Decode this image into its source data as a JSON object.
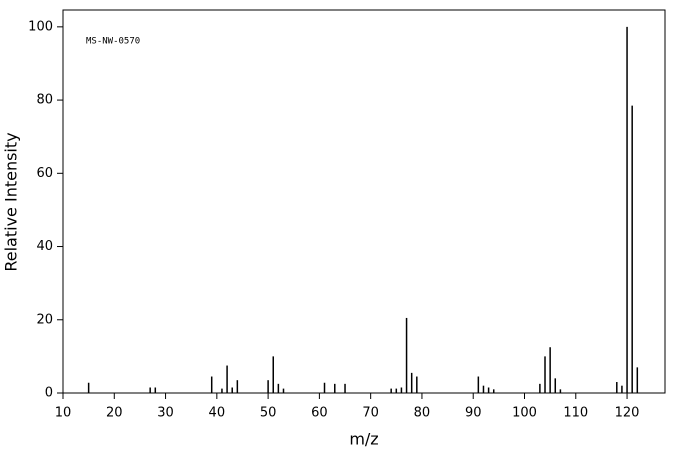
{
  "chart_data": {
    "type": "stem",
    "annotation": "MS-NW-0570",
    "x_label": "m/z",
    "y_label": "Relative Intensity",
    "color": "#000000",
    "x": [
      15,
      27,
      28,
      39,
      41,
      42,
      43,
      44,
      50,
      51,
      52,
      53,
      61,
      63,
      65,
      74,
      75,
      76,
      77,
      78,
      79,
      91,
      92,
      93,
      94,
      103,
      104,
      105,
      106,
      107,
      118,
      119,
      120,
      121,
      122
    ],
    "values": [
      2.8,
      1.5,
      1.5,
      4.5,
      1.2,
      7.5,
      1.5,
      3.5,
      3.5,
      10,
      2.5,
      1.2,
      2.8,
      2.5,
      2.5,
      1.2,
      1.2,
      1.5,
      20.5,
      5.5,
      4.5,
      4.5,
      2,
      1.5,
      1,
      2.5,
      10,
      12.5,
      4,
      1,
      3,
      2,
      100,
      78.5,
      7
    ],
    "xlim": [
      10,
      127.4
    ],
    "ylim": [
      0,
      104.6
    ],
    "xticks": [
      10,
      20,
      30,
      40,
      50,
      60,
      70,
      80,
      90,
      100,
      110,
      120
    ],
    "yticks": [
      0,
      20,
      40,
      60,
      80,
      100
    ]
  }
}
